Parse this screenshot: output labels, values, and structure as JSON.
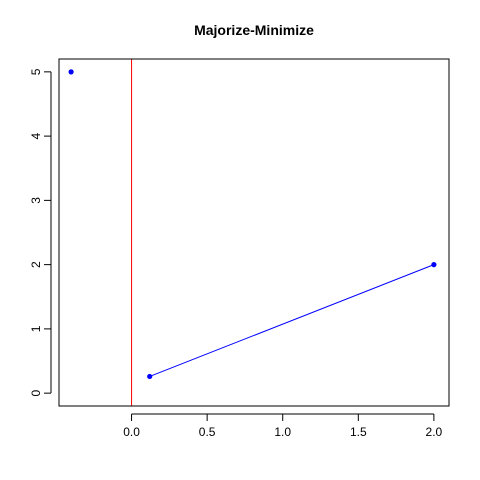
{
  "chart_data": {
    "type": "scatter",
    "title": "Majorize-Minimize",
    "xlabel": "",
    "ylabel": "",
    "xlim": [
      -0.48,
      2.1
    ],
    "ylim": [
      -0.2,
      5.2
    ],
    "x_ticks": [
      0.0,
      0.5,
      1.0,
      1.5,
      2.0
    ],
    "x_tick_labels": [
      "0.0",
      "0.5",
      "1.0",
      "1.5",
      "2.0"
    ],
    "y_ticks": [
      0,
      1,
      2,
      3,
      4,
      5
    ],
    "y_tick_labels": [
      "0",
      "1",
      "2",
      "3",
      "4",
      "5"
    ],
    "grid": false,
    "series": [
      {
        "points": [
          {
            "x": -0.4,
            "y": 5.0
          }
        ],
        "color": "#0000ff",
        "connected": false
      },
      {
        "points": [
          {
            "x": 0.12,
            "y": 0.26
          },
          {
            "x": 2.0,
            "y": 2.0
          }
        ],
        "color": "#0000ff",
        "connected": true
      }
    ],
    "reference_lines": [
      {
        "orientation": "vertical",
        "x": 0.0,
        "color": "#ff0000"
      }
    ]
  }
}
